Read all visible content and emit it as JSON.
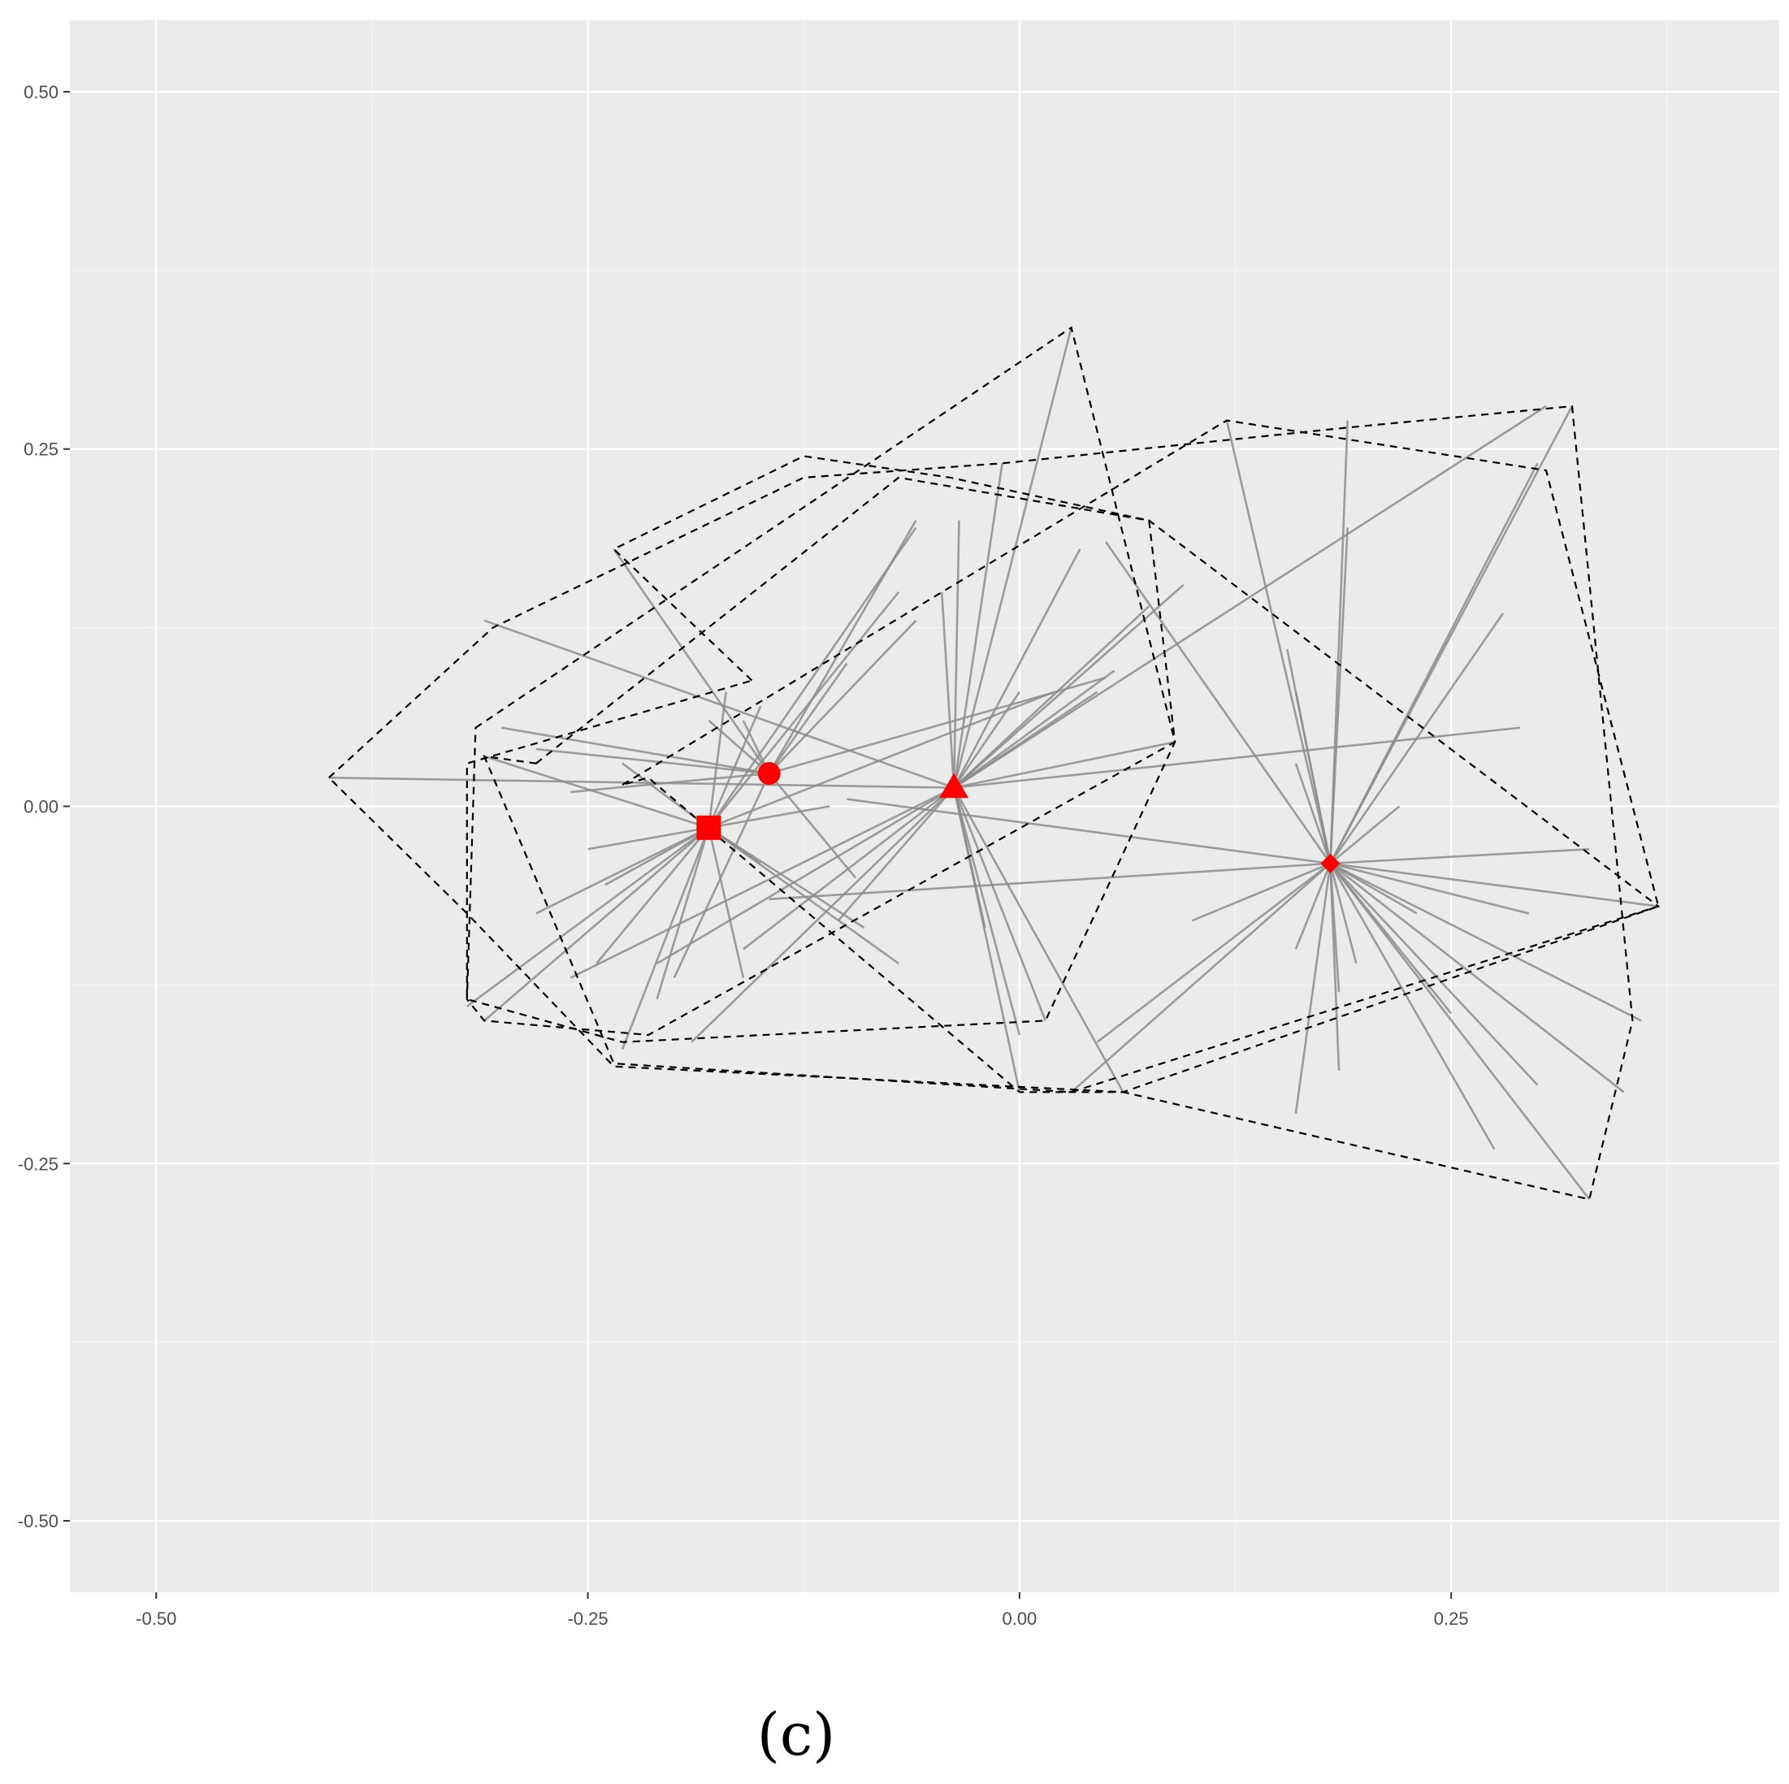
{
  "chart_data": {
    "type": "scatter",
    "title": "",
    "xlabel": "",
    "ylabel": "",
    "xlim": [
      -0.55,
      0.44
    ],
    "ylim": [
      -0.55,
      0.55
    ],
    "x_ticks": [
      -0.5,
      -0.25,
      0.0,
      0.25
    ],
    "x_tick_labels": [
      "-0.50",
      "-0.25",
      "0.00",
      "0.25"
    ],
    "y_ticks": [
      0.5,
      0.25,
      0.0,
      -0.25,
      -0.5
    ],
    "y_tick_labels": [
      "0.50",
      "0.25",
      "0.00",
      "-0.25",
      "-0.50"
    ],
    "grid": true,
    "background_color": "#ebebeb",
    "grid_color": "#ffffff",
    "centroid_color": "#ff0000",
    "spoke_color": "#8c8c8c",
    "hull_color": "#000000",
    "groups": [
      {
        "centroid": [
          -0.145,
          0.023
        ],
        "marker": "circle",
        "points": [
          [
            -0.235,
            0.18
          ],
          [
            -0.06,
            0.13
          ],
          [
            -0.1,
            0.1
          ],
          [
            -0.18,
            0.06
          ],
          [
            -0.26,
            0.01
          ],
          [
            -0.3,
            0.055
          ],
          [
            -0.2,
            -0.12
          ],
          [
            -0.06,
            0.2
          ],
          [
            -0.16,
            0.06
          ],
          [
            -0.095,
            -0.05
          ],
          [
            -0.28,
            0.04
          ],
          [
            0.05,
            0.09
          ]
        ]
      },
      {
        "centroid": [
          -0.18,
          -0.015
        ],
        "marker": "square",
        "points": [
          [
            -0.32,
            -0.14
          ],
          [
            -0.25,
            -0.03
          ],
          [
            -0.28,
            -0.075
          ],
          [
            -0.23,
            -0.17
          ],
          [
            -0.17,
            0.08
          ],
          [
            -0.31,
            -0.15
          ],
          [
            -0.06,
            0.195
          ],
          [
            -0.21,
            -0.135
          ],
          [
            -0.07,
            0.15
          ],
          [
            -0.245,
            -0.11
          ],
          [
            -0.16,
            -0.12
          ],
          [
            -0.24,
            -0.055
          ],
          [
            -0.15,
            0.07
          ],
          [
            -0.09,
            -0.085
          ],
          [
            -0.07,
            -0.11
          ],
          [
            -0.23,
            0.03
          ],
          [
            -0.31,
            0.035
          ],
          [
            0.02,
            0.08
          ],
          [
            -0.15,
            -0.04
          ],
          [
            -0.11,
            0.0
          ]
        ]
      },
      {
        "centroid": [
          -0.038,
          0.013
        ],
        "marker": "triangle",
        "points": [
          [
            0.03,
            0.335
          ],
          [
            -0.01,
            0.24
          ],
          [
            -0.035,
            0.2
          ],
          [
            -0.045,
            0.15
          ],
          [
            0.035,
            0.18
          ],
          [
            0.095,
            0.155
          ],
          [
            0.075,
            0.14
          ],
          [
            0.045,
            0.08
          ],
          [
            -0.19,
            -0.165
          ],
          [
            -0.26,
            -0.12
          ],
          [
            -0.21,
            -0.11
          ],
          [
            0.0,
            -0.2
          ],
          [
            0.06,
            -0.2
          ],
          [
            0.0,
            -0.16
          ],
          [
            0.015,
            -0.15
          ],
          [
            0.305,
            0.28
          ],
          [
            0.29,
            0.055
          ],
          [
            0.09,
            0.045
          ],
          [
            -0.4,
            0.02
          ],
          [
            -0.105,
            -0.08
          ],
          [
            -0.02,
            -0.085
          ],
          [
            -0.16,
            -0.1
          ],
          [
            -0.31,
            0.13
          ],
          [
            0.0,
            0.08
          ],
          [
            0.055,
            0.095
          ]
        ]
      },
      {
        "centroid": [
          0.18,
          -0.04
        ],
        "marker": "diamond",
        "points": [
          [
            0.12,
            0.27
          ],
          [
            0.19,
            0.27
          ],
          [
            0.3,
            0.24
          ],
          [
            0.32,
            0.28
          ],
          [
            0.05,
            0.185
          ],
          [
            0.19,
            0.195
          ],
          [
            0.28,
            0.135
          ],
          [
            0.155,
            0.11
          ],
          [
            0.22,
            0.0
          ],
          [
            0.33,
            -0.03
          ],
          [
            0.37,
            -0.07
          ],
          [
            0.36,
            -0.15
          ],
          [
            0.35,
            -0.2
          ],
          [
            0.33,
            -0.275
          ],
          [
            0.275,
            -0.24
          ],
          [
            0.3,
            -0.195
          ],
          [
            0.25,
            -0.145
          ],
          [
            0.16,
            -0.215
          ],
          [
            0.185,
            -0.185
          ],
          [
            0.03,
            -0.2
          ],
          [
            -0.145,
            -0.065
          ],
          [
            0.1,
            -0.08
          ],
          [
            0.16,
            -0.1
          ],
          [
            0.185,
            -0.13
          ],
          [
            0.195,
            -0.11
          ],
          [
            0.23,
            -0.075
          ],
          [
            0.295,
            -0.075
          ],
          [
            0.16,
            0.08
          ],
          [
            0.045,
            -0.165
          ],
          [
            -0.1,
            0.005
          ],
          [
            0.16,
            0.03
          ]
        ]
      }
    ],
    "hulls": [
      [
        [
          -0.155,
          0.088
        ],
        [
          -0.235,
          0.18
        ],
        [
          -0.125,
          0.245
        ],
        [
          -0.04,
          0.23
        ],
        [
          0.075,
          0.2
        ],
        [
          0.09,
          0.045
        ],
        [
          0.015,
          -0.15
        ],
        [
          -0.23,
          -0.165
        ],
        [
          -0.32,
          -0.135
        ],
        [
          -0.32,
          0.03
        ]
      ],
      [
        [
          -0.4,
          0.02
        ],
        [
          -0.305,
          0.125
        ],
        [
          -0.125,
          0.23
        ],
        [
          -0.01,
          0.24
        ],
        [
          0.19,
          0.265
        ],
        [
          0.32,
          0.28
        ],
        [
          0.355,
          -0.15
        ],
        [
          0.33,
          -0.275
        ],
        [
          0.06,
          -0.2
        ],
        [
          -0.235,
          -0.182
        ],
        [
          -0.32,
          -0.075
        ]
      ],
      [
        [
          -0.315,
          0.055
        ],
        [
          0.03,
          0.335
        ],
        [
          0.09,
          0.045
        ],
        [
          -0.215,
          -0.16
        ],
        [
          -0.31,
          -0.15
        ],
        [
          -0.32,
          -0.135
        ]
      ],
      [
        [
          -0.23,
          0.015
        ],
        [
          0.12,
          0.27
        ],
        [
          0.305,
          0.235
        ],
        [
          0.37,
          -0.07
        ],
        [
          0.06,
          -0.2
        ],
        [
          0.0,
          -0.2
        ],
        [
          -0.215,
          0.02
        ]
      ],
      [
        [
          -0.28,
          0.03
        ],
        [
          -0.07,
          0.23
        ],
        [
          0.075,
          0.2
        ],
        [
          0.37,
          -0.07
        ],
        [
          0.03,
          -0.2
        ],
        [
          -0.235,
          -0.18
        ],
        [
          -0.31,
          0.035
        ]
      ]
    ]
  },
  "caption": "(c)"
}
